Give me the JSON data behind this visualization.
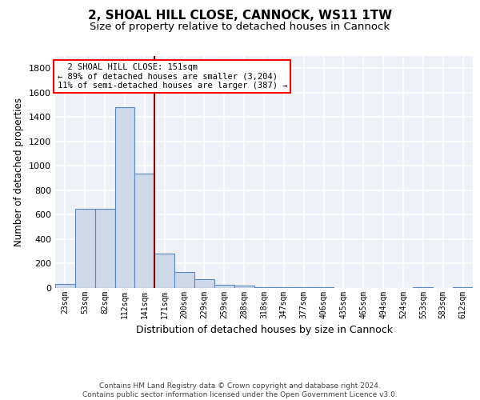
{
  "title1": "2, SHOAL HILL CLOSE, CANNOCK, WS11 1TW",
  "title2": "Size of property relative to detached houses in Cannock",
  "xlabel": "Distribution of detached houses by size in Cannock",
  "ylabel": "Number of detached properties",
  "categories": [
    "23sqm",
    "53sqm",
    "82sqm",
    "112sqm",
    "141sqm",
    "171sqm",
    "200sqm",
    "229sqm",
    "259sqm",
    "288sqm",
    "318sqm",
    "347sqm",
    "377sqm",
    "406sqm",
    "435sqm",
    "465sqm",
    "494sqm",
    "524sqm",
    "553sqm",
    "583sqm",
    "612sqm"
  ],
  "values": [
    35,
    650,
    650,
    1480,
    940,
    285,
    130,
    70,
    25,
    20,
    5,
    5,
    5,
    5,
    0,
    0,
    0,
    0,
    5,
    0,
    5
  ],
  "bar_color": "#cdd8e8",
  "bar_edge_color": "#5b87c5",
  "vline_x": 4.5,
  "vline_color": "#8b0000",
  "annotation_text": "  2 SHOAL HILL CLOSE: 151sqm\n← 89% of detached houses are smaller (3,204)\n11% of semi-detached houses are larger (387) →",
  "annotation_box_color": "white",
  "annotation_box_edge_color": "red",
  "footnote": "Contains HM Land Registry data © Crown copyright and database right 2024.\nContains public sector information licensed under the Open Government Licence v3.0.",
  "ylim": [
    0,
    1900
  ],
  "background_color": "#eef1f8",
  "grid_color": "white",
  "title1_fontsize": 11,
  "title2_fontsize": 9.5,
  "xlabel_fontsize": 9,
  "ylabel_fontsize": 8.5,
  "tick_fontsize": 7,
  "footnote_fontsize": 6.5
}
